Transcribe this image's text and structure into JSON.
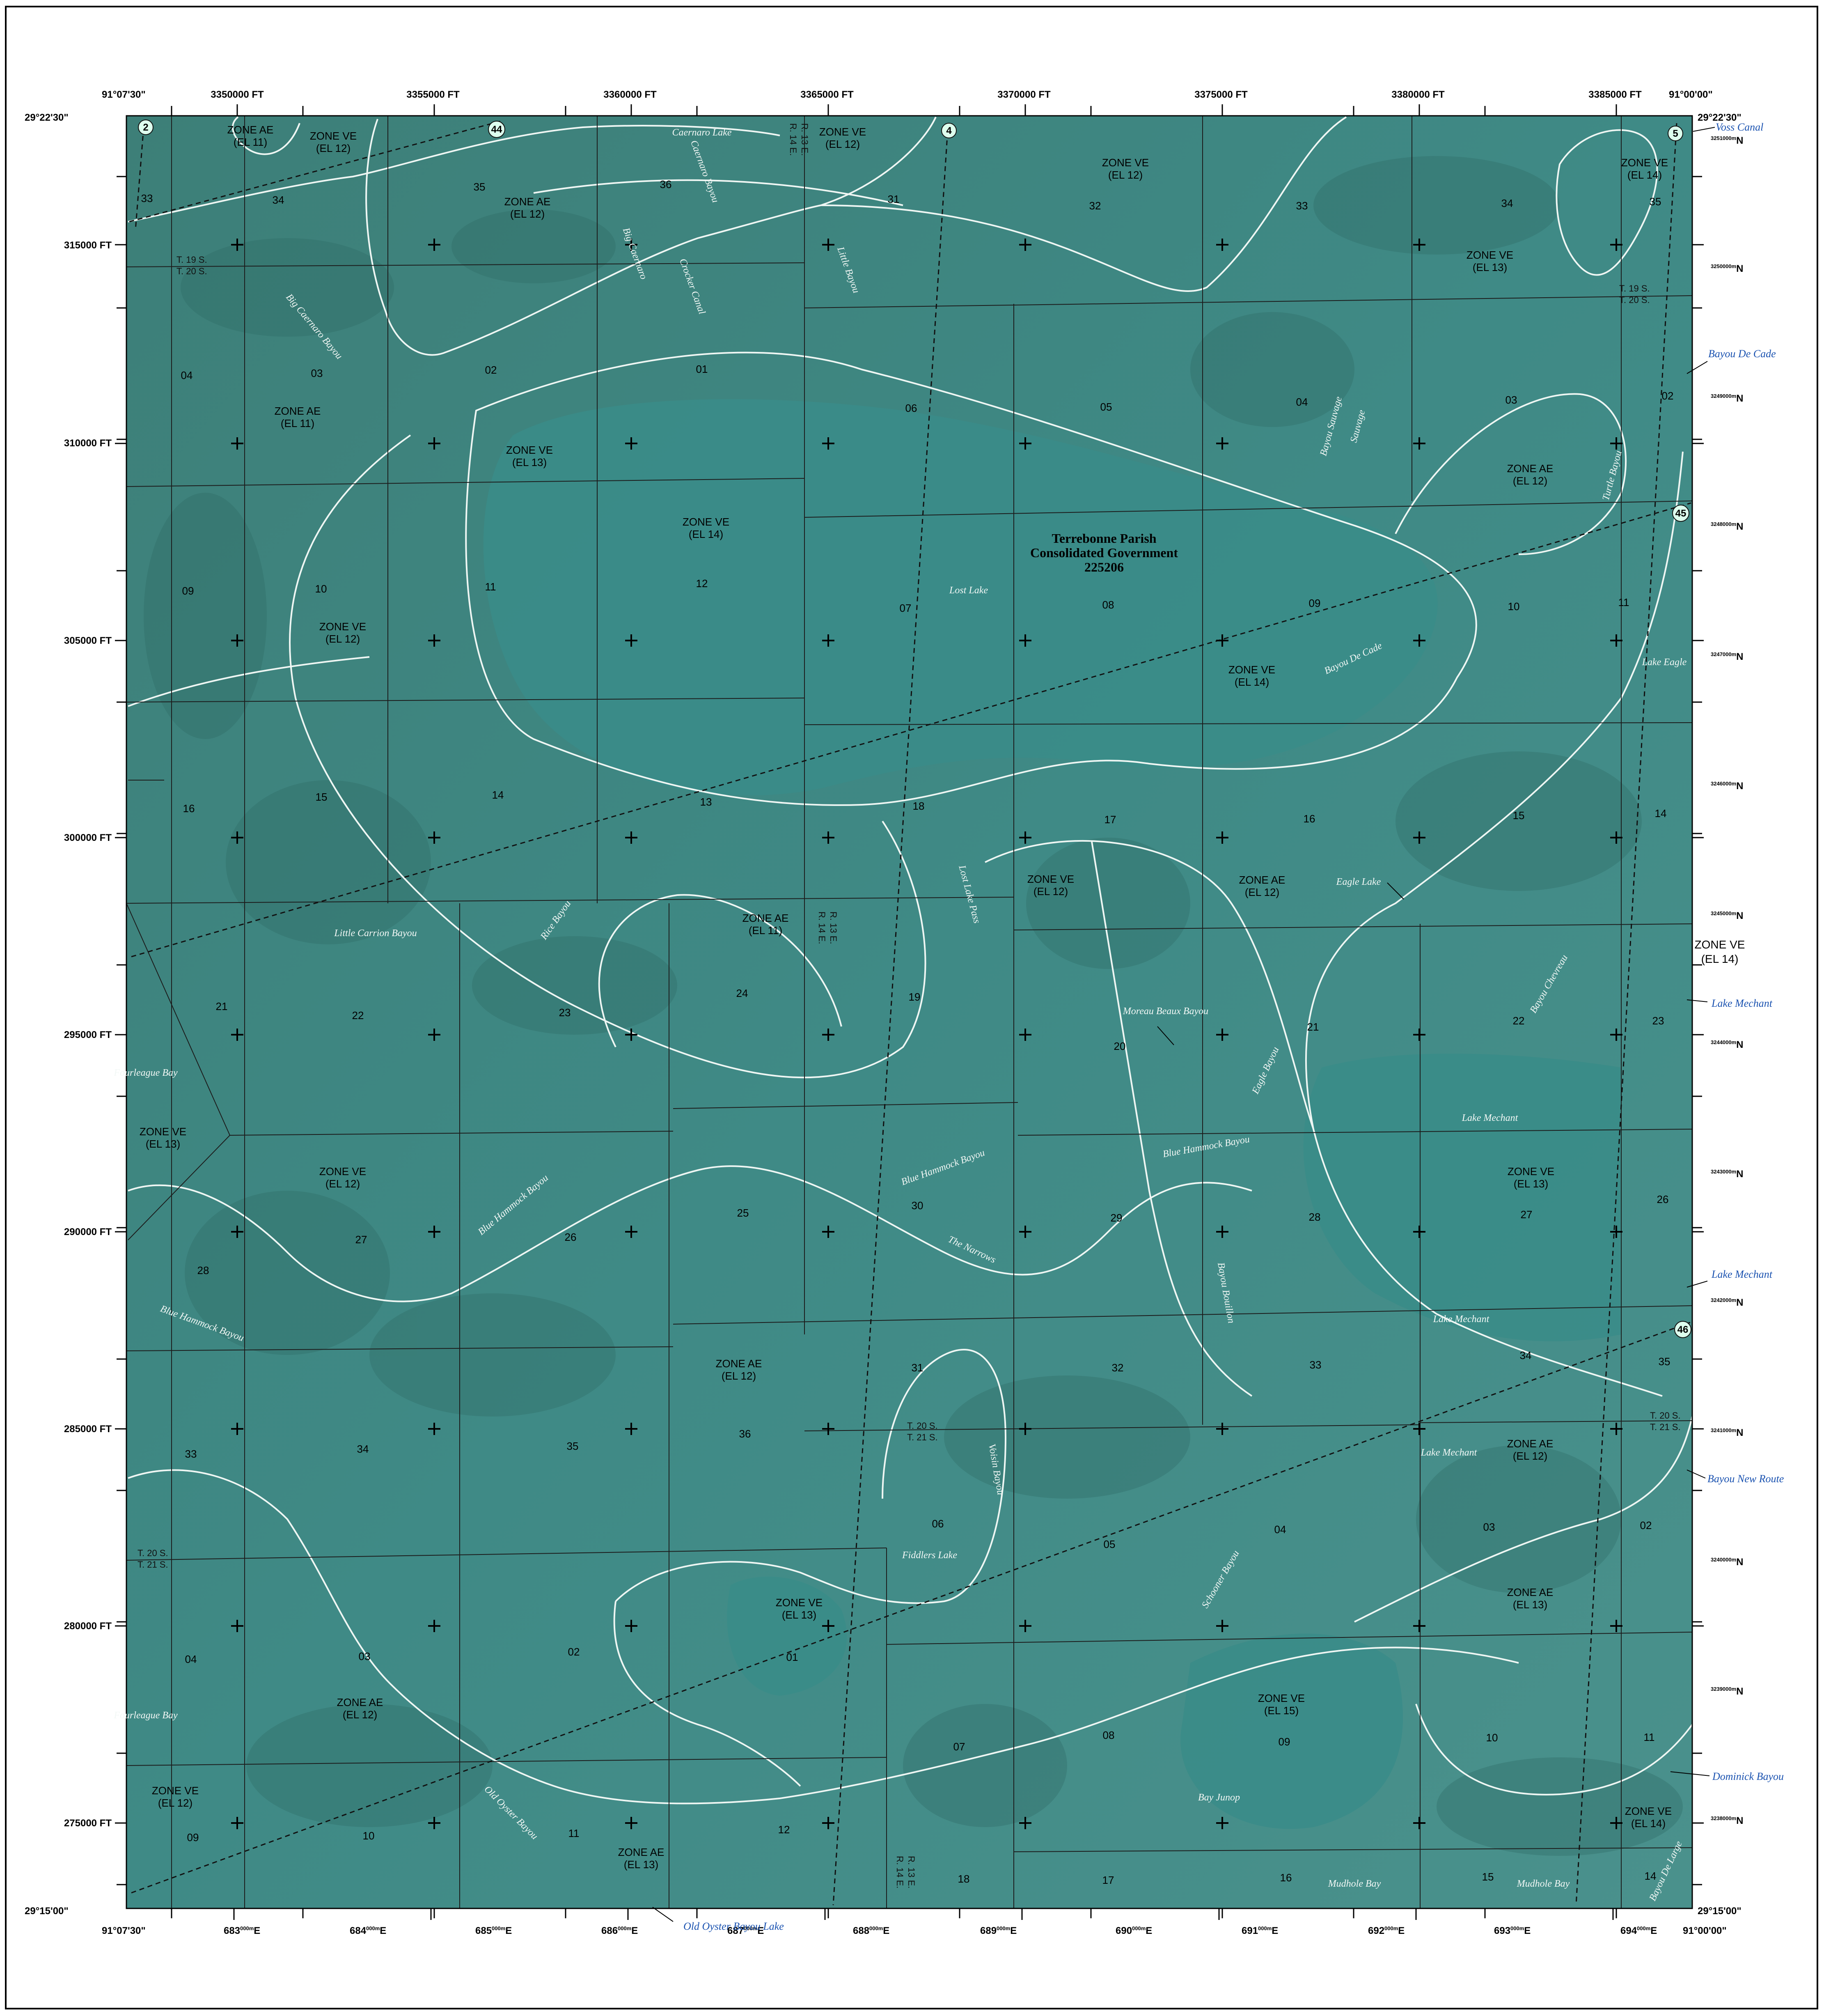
{
  "corners": {
    "top_left_lon": "91°07'30\"",
    "top_right_lon": "91°00'00\"",
    "bottom_left_lon": "91°07'30\"",
    "bottom_right_lon": "91°00'00\"",
    "top_lat": "29°22'30\"",
    "bottom_lat": "29°15'00\""
  },
  "top_ft_labels": [
    "3350000 FT",
    "3355000 FT",
    "3360000 FT",
    "3365000 FT",
    "3370000 FT",
    "3375000 FT",
    "3380000 FT",
    "3385000 FT"
  ],
  "left_ft_labels": [
    "315000 FT",
    "310000 FT",
    "305000 FT",
    "300000 FT",
    "295000 FT",
    "290000 FT",
    "285000 FT",
    "280000 FT",
    "275000 FT"
  ],
  "bottom_utm_labels": [
    "683",
    "684",
    "685",
    "686",
    "687",
    "688",
    "689",
    "690",
    "691",
    "692",
    "693",
    "694"
  ],
  "bottom_utm_suffix": "000m",
  "bottom_utm_unit": "E",
  "right_utm_labels": [
    "3251",
    "3250",
    "3249",
    "3248",
    "3247",
    "3246",
    "3245",
    "3244",
    "3243",
    "3242",
    "3241",
    "3240",
    "3239",
    "3238"
  ],
  "right_utm_suffix": "000m",
  "right_utm_unit": "N",
  "route_shields": [
    "2",
    "44",
    "4",
    "5",
    "45",
    "46"
  ],
  "zone_labels": [
    {
      "zone": "ZONE AE",
      "el": "(EL 11)"
    },
    {
      "zone": "ZONE VE",
      "el": "(EL 12)"
    },
    {
      "zone": "ZONE VE",
      "el": "(EL 12)"
    },
    {
      "zone": "ZONE AE",
      "el": "(EL 12)"
    },
    {
      "zone": "ZONE VE",
      "el": "(EL 12)"
    },
    {
      "zone": "ZONE VE",
      "el": "(EL 14)"
    },
    {
      "zone": "ZONE VE",
      "el": "(EL 13)"
    },
    {
      "zone": "ZONE AE",
      "el": "(EL 11)"
    },
    {
      "zone": "ZONE VE",
      "el": "(EL 13)"
    },
    {
      "zone": "ZONE AE",
      "el": "(EL 12)"
    },
    {
      "zone": "ZONE VE",
      "el": "(EL 14)"
    },
    {
      "zone": "ZONE VE",
      "el": "(EL 12)"
    },
    {
      "zone": "ZONE VE",
      "el": "(EL 14)"
    },
    {
      "zone": "ZONE VE",
      "el": "(EL 12)"
    },
    {
      "zone": "ZONE AE",
      "el": "(EL 11)"
    },
    {
      "zone": "ZONE AE",
      "el": "(EL 12)"
    },
    {
      "zone": "ZONE VE",
      "el": "(EL 13)"
    },
    {
      "zone": "ZONE VE",
      "el": "(EL 12)"
    },
    {
      "zone": "ZONE VE",
      "el": "(EL 13)"
    },
    {
      "zone": "ZONE AE",
      "el": "(EL 12)"
    },
    {
      "zone": "ZONE AE",
      "el": "(EL 12)"
    },
    {
      "zone": "ZONE VE",
      "el": "(EL 13)"
    },
    {
      "zone": "ZONE AE",
      "el": "(EL 13)"
    },
    {
      "zone": "ZONE AE",
      "el": "(EL 12)"
    },
    {
      "zone": "ZONE VE",
      "el": "(EL 15)"
    },
    {
      "zone": "ZONE VE",
      "el": "(EL 12)"
    },
    {
      "zone": "ZONE AE",
      "el": "(EL 13)"
    },
    {
      "zone": "ZONE VE",
      "el": "(EL 14)"
    },
    {
      "zone": "ZONE VE",
      "el": "(EL 14)"
    }
  ],
  "section_numbers": [
    "33",
    "34",
    "35",
    "36",
    "31",
    "32",
    "33",
    "34",
    "35",
    "04",
    "03",
    "02",
    "01",
    "06",
    "05",
    "04",
    "03",
    "02",
    "09",
    "10",
    "11",
    "12",
    "07",
    "08",
    "09",
    "10",
    "11",
    "16",
    "15",
    "14",
    "13",
    "18",
    "17",
    "16",
    "15",
    "14",
    "21",
    "22",
    "23",
    "24",
    "19",
    "20",
    "21",
    "22",
    "23",
    "28",
    "27",
    "26",
    "25",
    "30",
    "29",
    "28",
    "27",
    "26",
    "33",
    "34",
    "35",
    "36",
    "31",
    "32",
    "33",
    "34",
    "35",
    "04",
    "03",
    "02",
    "01",
    "06",
    "05",
    "04",
    "03",
    "02",
    "09",
    "10",
    "11",
    "12",
    "07",
    "08",
    "09",
    "10",
    "11",
    "18",
    "17",
    "16",
    "15",
    "14"
  ],
  "township_labels": [
    {
      "line1": "T. 19 S.",
      "line2": "T. 20 S."
    },
    {
      "line1": "T. 19 S.",
      "line2": "T. 20 S."
    },
    {
      "line1": "T. 20 S.",
      "line2": "T. 21 S."
    },
    {
      "line1": "T. 20 S.",
      "line2": "T. 21 S."
    },
    {
      "line1": "T. 20 S.",
      "line2": "T. 21 S."
    }
  ],
  "range_labels": [
    {
      "line1": "R. 14 E.",
      "line2": "R. 13 E."
    },
    {
      "line1": "R. 14 E.",
      "line2": "R. 13 E."
    },
    {
      "line1": "R. 14 E.",
      "line2": "R. 13 E."
    }
  ],
  "community": {
    "line1": "Terrebonne Parish",
    "line2": "Consolidated Government",
    "line3": "225206"
  },
  "water_labels_inside": [
    "Caernaro Lake",
    "Caernaro Bayou",
    "Big Caernaro Bayou",
    "Big Caernaro",
    "Crocker Canal",
    "Little Bayou",
    "Bayou Sauvage",
    "Sauvage",
    "Turtle Bayou",
    "Lost Lake",
    "Bayou De Cade",
    "Lake Eagle",
    "Lost Lake Pass",
    "Eagle Lake",
    "Little Carrion Bayou",
    "Rice Bayou",
    "Moreau Beaux Bayou",
    "Eagle Bayou",
    "Bayou Chevreau",
    "Lake Mechant",
    "Fourleague Bay",
    "Blue Hammock Bayou",
    "Blue Hammock Bayou",
    "Blue Hammock Bayou",
    "Blue Hammock Bayou",
    "The Narrows",
    "Bayou Bouillon",
    "Lake Mechant",
    "Lake Mechant",
    "Voisin Bayou",
    "Fiddlers Lake",
    "Schooner Bayou",
    "Fourleague Bay",
    "Old Oyster Bayou",
    "Bay Junop",
    "Mudhole Bay",
    "Mudhole Bay",
    "Bayou De Large"
  ],
  "water_labels_outside": [
    "Voss Canal",
    "Bayou De Cade",
    "Lake Mechant",
    "Lake Mechant",
    "Bayou New Route",
    "Dominick Bayou",
    "Old Oyster Bayou Lake"
  ],
  "outside_zone": {
    "zone": "ZONE VE",
    "el": "(EL 14)"
  },
  "colors": {
    "imagery": "#3f8a86",
    "boundary": "#f0f5f3",
    "label_water": "#1a52b0",
    "grid": "#1c1c1c",
    "frame": "#000000"
  }
}
